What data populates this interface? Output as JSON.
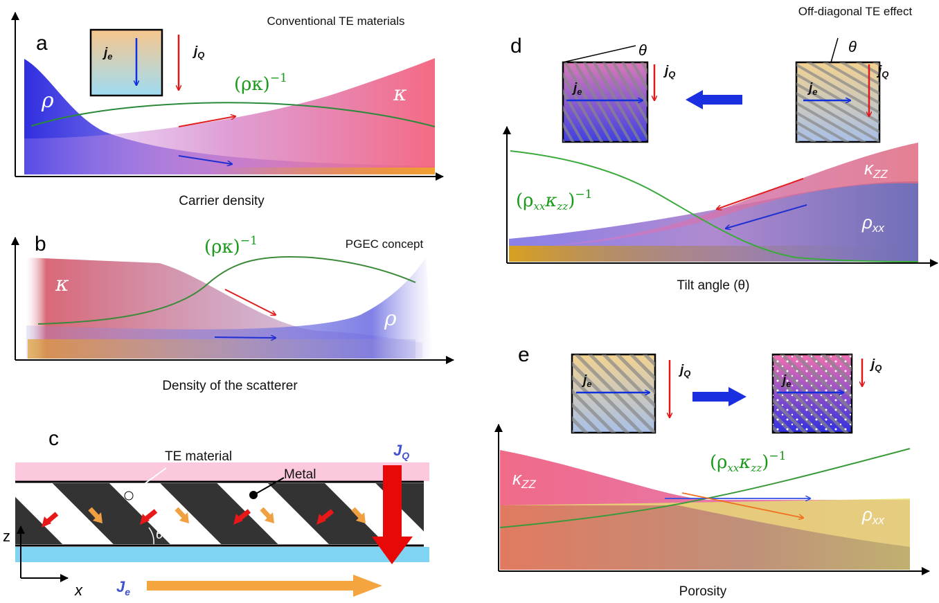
{
  "panels": {
    "a": {
      "label": "a",
      "title": "Conventional TE materials",
      "je": {
        "main": "j",
        "sub": "e"
      },
      "jq": {
        "main": "j",
        "sub": "Q"
      },
      "curve_label": {
        "main": "(ρκ)",
        "sup": "−1"
      },
      "rho": "ρ",
      "kappa": "κ",
      "x_axis": "Carrier density"
    },
    "b": {
      "label": "b",
      "title": "PGEC concept",
      "curve_label": {
        "main": "(ρκ)",
        "sup": "−1"
      },
      "rho": "ρ",
      "kappa": "κ",
      "x_axis": "Density of the scatterer"
    },
    "c": {
      "label": "c",
      "te_material": "TE material",
      "metal": "Metal",
      "JQ": {
        "main": "J",
        "sub": "Q"
      },
      "Je": {
        "main": "J",
        "sub": "e"
      },
      "z": "z",
      "x": "x",
      "theta": "θ"
    },
    "d": {
      "label": "d",
      "title": "Off-diagonal TE effect",
      "theta": "θ",
      "je": {
        "main": "j",
        "sub": "e"
      },
      "jq": {
        "main": "j",
        "sub": "Q"
      },
      "curve_label": {
        "open": "(ρ",
        "sub1": "xx",
        "mid": "κ",
        "sub2": "zz",
        "close": ")",
        "sup": "−1"
      },
      "kappa": {
        "main": "κ",
        "sub": "ZZ"
      },
      "rho": {
        "main": "ρ",
        "sub": "xx"
      },
      "x_axis": "Tilt angle (θ)"
    },
    "e": {
      "label": "e",
      "je": {
        "main": "j",
        "sub": "e"
      },
      "jq": {
        "main": "j",
        "sub": "Q"
      },
      "curve_label": {
        "open": "(ρ",
        "sub1": "xx",
        "mid": "κ",
        "sub2": "zz",
        "close": ")",
        "sup": "−1"
      },
      "kappa": {
        "main": "κ",
        "sub": "ZZ"
      },
      "rho": {
        "main": "ρ",
        "sub": "xx"
      },
      "x_axis": "Porosity"
    }
  }
}
